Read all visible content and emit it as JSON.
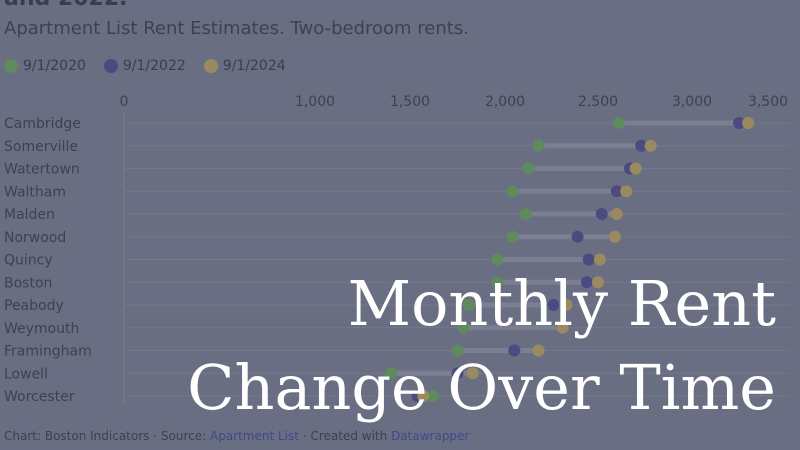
{
  "header": {
    "cut_title": "and 2022.",
    "subtitle": "Apartment List Rent Estimates. Two-bedroom rents."
  },
  "overlay": {
    "line1": "Monthly Rent",
    "line2": "Change Over Time"
  },
  "footer": {
    "chart_by": "Chart: Boston Indicators",
    "sep1": "·",
    "source_label": "Source:",
    "source_link": "Apartment List",
    "sep2": "·",
    "created_label": "Created with",
    "tool_link": "Datawrapper"
  },
  "colors": {
    "series_2020": "#5f8a5c",
    "series_2022": "#4d4a82",
    "series_2024": "#9b8a5f",
    "connector": "#7b7f91",
    "gridline": "#74788b",
    "axis_text": "#3e4150"
  },
  "chart_data": {
    "type": "dot",
    "title": "",
    "subtitle": "Apartment List Rent Estimates. Two-bedroom rents.",
    "xlabel": "",
    "ylabel": "",
    "xlim": [
      0,
      3550
    ],
    "x_ticks": [
      0,
      1000,
      1500,
      2000,
      2500,
      3000,
      3500
    ],
    "x_tick_labels": [
      "0",
      "1,000",
      "1,500",
      "2,000",
      "2,500",
      "3,000",
      "3,500"
    ],
    "grid": true,
    "legend_position": "top-left",
    "categories": [
      "Cambridge",
      "Somerville",
      "Watertown",
      "Waltham",
      "Malden",
      "Norwood",
      "Quincy",
      "Boston",
      "Peabody",
      "Weymouth",
      "Framingham",
      "Lowell",
      "Worcester"
    ],
    "series": [
      {
        "name": "9/1/2020",
        "values": [
          2610,
          2180,
          2125,
          2040,
          2110,
          2040,
          1960,
          1960,
          1810,
          1780,
          1750,
          1400,
          1620
        ]
      },
      {
        "name": "9/1/2022",
        "values": [
          3310,
          2730,
          2670,
          2600,
          2520,
          2390,
          2450,
          2440,
          2260,
          2310,
          2050,
          1750,
          1540
        ]
      },
      {
        "name": "9/1/2024",
        "values": [
          3370,
          2780,
          2700,
          2650,
          2600,
          2590,
          2510,
          2500,
          2330,
          2310,
          2180,
          1830,
          1570
        ]
      }
    ]
  }
}
